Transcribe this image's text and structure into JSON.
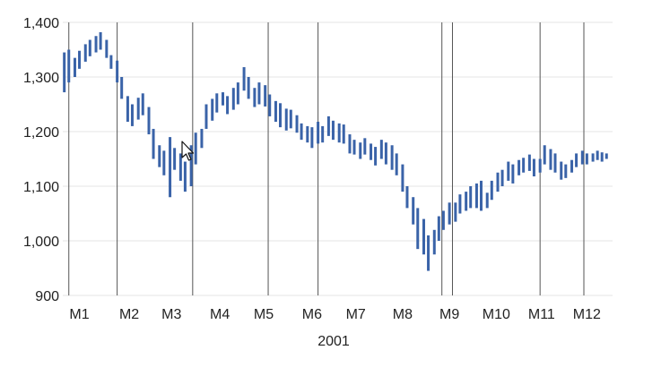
{
  "colors": {
    "series": "#3a63a8",
    "grid": "#e6e6e6",
    "vline": "#555555",
    "text": "#222222",
    "background": "#ffffff"
  },
  "cursor_icon": "arrow-pointer-icon",
  "chart_data": {
    "type": "line",
    "title": "",
    "xlabel": "2001",
    "ylabel": "",
    "ylim": [
      900,
      1400
    ],
    "yticks": [
      900,
      1000,
      1100,
      1200,
      1300,
      1400
    ],
    "ytick_labels": [
      "900",
      "1,000",
      "1,100",
      "1,200",
      "1,300",
      "1,400"
    ],
    "xlim": [
      "2001-01-01",
      "2001-12-31"
    ],
    "month_labels": [
      "M1",
      "M2",
      "M3",
      "M4",
      "M5",
      "M6",
      "M7",
      "M8",
      "M9",
      "M10",
      "M11",
      "M12"
    ],
    "month_label_dates": [
      "2001-01-12",
      "2001-02-14",
      "2001-03-14",
      "2001-04-15",
      "2001-05-14",
      "2001-06-15",
      "2001-07-14",
      "2001-08-14",
      "2001-09-14",
      "2001-10-15",
      "2001-11-14",
      "2001-12-14"
    ],
    "grid": true,
    "event_lines": [
      "2001-01-05",
      "2001-02-06",
      "2001-03-28",
      "2001-05-17",
      "2001-06-19",
      "2001-09-09",
      "2001-09-16",
      "2001-11-13",
      "2001-12-12"
    ],
    "series": [
      {
        "x": [
          "2001-01-02",
          "2001-01-05",
          "2001-01-09",
          "2001-01-12",
          "2001-01-16",
          "2001-01-19",
          "2001-01-23",
          "2001-01-26",
          "2001-01-30",
          "2001-02-02",
          "2001-02-06",
          "2001-02-09",
          "2001-02-13",
          "2001-02-16",
          "2001-02-20",
          "2001-02-23",
          "2001-02-27",
          "2001-03-02",
          "2001-03-06",
          "2001-03-09",
          "2001-03-13",
          "2001-03-16",
          "2001-03-20",
          "2001-03-23",
          "2001-03-27",
          "2001-03-30",
          "2001-04-03",
          "2001-04-06",
          "2001-04-10",
          "2001-04-13",
          "2001-04-17",
          "2001-04-20",
          "2001-04-24",
          "2001-04-27",
          "2001-05-01",
          "2001-05-04",
          "2001-05-08",
          "2001-05-11",
          "2001-05-15",
          "2001-05-18",
          "2001-05-22",
          "2001-05-25",
          "2001-05-29",
          "2001-06-01",
          "2001-06-05",
          "2001-06-08",
          "2001-06-12",
          "2001-06-15",
          "2001-06-19",
          "2001-06-22",
          "2001-06-26",
          "2001-06-29",
          "2001-07-03",
          "2001-07-06",
          "2001-07-10",
          "2001-07-13",
          "2001-07-17",
          "2001-07-20",
          "2001-07-24",
          "2001-07-27",
          "2001-07-31",
          "2001-08-03",
          "2001-08-07",
          "2001-08-10",
          "2001-08-14",
          "2001-08-17",
          "2001-08-21",
          "2001-08-24",
          "2001-08-28",
          "2001-08-31",
          "2001-09-04",
          "2001-09-07",
          "2001-09-10",
          "2001-09-14",
          "2001-09-18",
          "2001-09-21",
          "2001-09-25",
          "2001-09-28",
          "2001-10-02",
          "2001-10-05",
          "2001-10-09",
          "2001-10-12",
          "2001-10-16",
          "2001-10-19",
          "2001-10-23",
          "2001-10-26",
          "2001-10-30",
          "2001-11-02",
          "2001-11-06",
          "2001-11-09",
          "2001-11-13",
          "2001-11-16",
          "2001-11-20",
          "2001-11-23",
          "2001-11-27",
          "2001-11-30",
          "2001-12-04",
          "2001-12-07",
          "2001-12-11",
          "2001-12-14",
          "2001-12-18",
          "2001-12-21",
          "2001-12-24",
          "2001-12-27"
        ],
        "high": [
          1345,
          1350,
          1335,
          1348,
          1360,
          1368,
          1375,
          1382,
          1368,
          1340,
          1330,
          1300,
          1265,
          1250,
          1262,
          1270,
          1245,
          1205,
          1175,
          1165,
          1190,
          1170,
          1160,
          1145,
          1175,
          1198,
          1205,
          1250,
          1260,
          1270,
          1272,
          1265,
          1280,
          1290,
          1318,
          1300,
          1280,
          1290,
          1285,
          1268,
          1256,
          1252,
          1242,
          1240,
          1230,
          1215,
          1210,
          1208,
          1218,
          1210,
          1228,
          1220,
          1215,
          1213,
          1195,
          1185,
          1180,
          1188,
          1178,
          1172,
          1185,
          1180,
          1175,
          1160,
          1140,
          1100,
          1080,
          1060,
          1040,
          1010,
          1020,
          1045,
          1055,
          1070,
          1070,
          1085,
          1090,
          1100,
          1105,
          1110,
          1088,
          1110,
          1125,
          1130,
          1145,
          1140,
          1148,
          1152,
          1158,
          1150,
          1150,
          1175,
          1168,
          1160,
          1145,
          1140,
          1148,
          1160,
          1165,
          1160,
          1160,
          1165,
          1162,
          1160
        ],
        "low": [
          1272,
          1290,
          1300,
          1315,
          1328,
          1338,
          1345,
          1350,
          1335,
          1315,
          1290,
          1260,
          1218,
          1210,
          1222,
          1230,
          1195,
          1150,
          1135,
          1120,
          1080,
          1130,
          1110,
          1090,
          1100,
          1140,
          1170,
          1205,
          1220,
          1235,
          1248,
          1232,
          1240,
          1250,
          1275,
          1260,
          1245,
          1250,
          1246,
          1228,
          1218,
          1208,
          1202,
          1206,
          1198,
          1185,
          1180,
          1170,
          1178,
          1180,
          1192,
          1185,
          1180,
          1178,
          1160,
          1158,
          1150,
          1158,
          1148,
          1138,
          1150,
          1140,
          1130,
          1120,
          1090,
          1060,
          1030,
          985,
          975,
          945,
          975,
          1000,
          1020,
          1030,
          1035,
          1050,
          1055,
          1060,
          1060,
          1055,
          1060,
          1075,
          1090,
          1100,
          1110,
          1105,
          1120,
          1125,
          1128,
          1118,
          1125,
          1140,
          1130,
          1125,
          1112,
          1115,
          1125,
          1135,
          1140,
          1140,
          1145,
          1148,
          1145,
          1150
        ]
      }
    ]
  }
}
